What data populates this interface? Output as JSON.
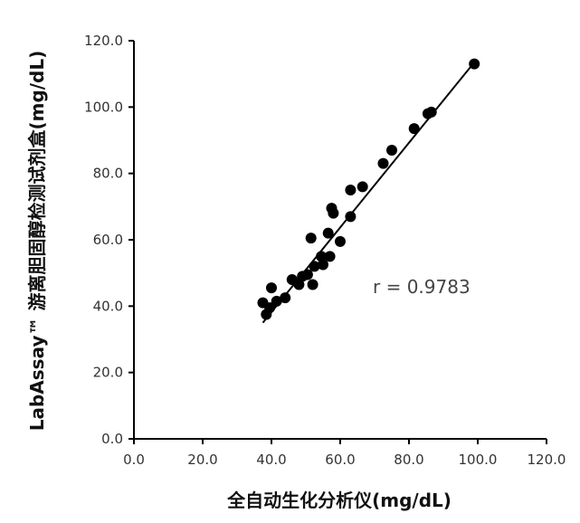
{
  "chart_data": {
    "type": "scatter",
    "title": "",
    "xlabel": "全自动生化分析仪(mg/dL)",
    "ylabel": "LabAssay™ 游离胆固醇检测试剂盒(mg/dL)",
    "xlim": [
      0,
      120
    ],
    "ylim": [
      0,
      120
    ],
    "xticks": [
      "0.0",
      "20.0",
      "40.0",
      "60.0",
      "80.0",
      "100.0",
      "120.0"
    ],
    "yticks": [
      "0.0",
      "20.0",
      "40.0",
      "60.0",
      "80.0",
      "100.0",
      "120.0"
    ],
    "grid": false,
    "legend": "none",
    "annotation": "r = 0.9783",
    "marker_color": "#000000",
    "points": [
      {
        "x": 37.5,
        "y": 41.0
      },
      {
        "x": 38.5,
        "y": 37.5
      },
      {
        "x": 39.5,
        "y": 39.5
      },
      {
        "x": 40.0,
        "y": 45.5
      },
      {
        "x": 41.5,
        "y": 41.5
      },
      {
        "x": 44.0,
        "y": 42.5
      },
      {
        "x": 46.0,
        "y": 48.0
      },
      {
        "x": 48.0,
        "y": 46.5
      },
      {
        "x": 49.0,
        "y": 49.0
      },
      {
        "x": 50.5,
        "y": 49.5
      },
      {
        "x": 51.5,
        "y": 60.5
      },
      {
        "x": 52.0,
        "y": 46.5
      },
      {
        "x": 52.5,
        "y": 52.0
      },
      {
        "x": 54.5,
        "y": 55.0
      },
      {
        "x": 55.0,
        "y": 52.5
      },
      {
        "x": 56.5,
        "y": 62.0
      },
      {
        "x": 57.0,
        "y": 55.0
      },
      {
        "x": 57.5,
        "y": 69.5
      },
      {
        "x": 58.0,
        "y": 68.0
      },
      {
        "x": 60.0,
        "y": 59.5
      },
      {
        "x": 63.0,
        "y": 75.0
      },
      {
        "x": 63.0,
        "y": 67.0
      },
      {
        "x": 66.5,
        "y": 76.0
      },
      {
        "x": 72.5,
        "y": 83.0
      },
      {
        "x": 75.0,
        "y": 87.0
      },
      {
        "x": 81.5,
        "y": 93.5
      },
      {
        "x": 85.5,
        "y": 98.0
      },
      {
        "x": 86.5,
        "y": 98.5
      },
      {
        "x": 99.0,
        "y": 113.0
      }
    ],
    "fit_line": {
      "x": [
        37.5,
        99.0
      ],
      "y": [
        35.0,
        113.5
      ]
    }
  }
}
